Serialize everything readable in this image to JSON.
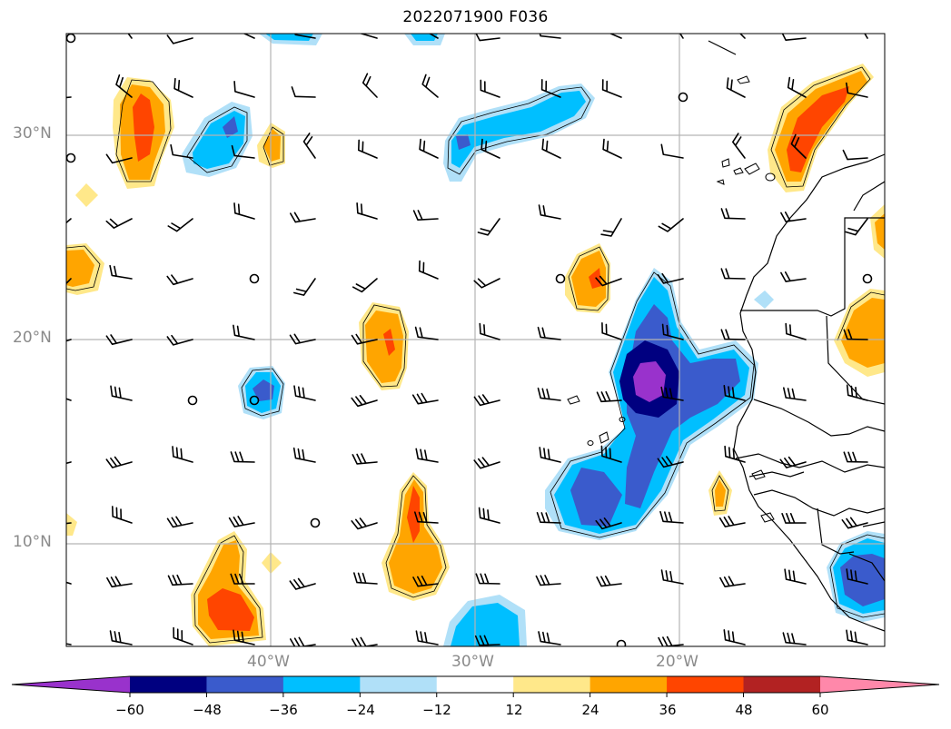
{
  "title": "2022071900 F036",
  "lat_labels": [
    "30°N",
    "20°N",
    "10°N"
  ],
  "lon_labels": [
    "40°W",
    "30°W",
    "20°W"
  ],
  "colorbar": {
    "ticks": [
      "−60",
      "−48",
      "−36",
      "−24",
      "−12",
      "12",
      "24",
      "36",
      "48",
      "60"
    ],
    "colors": [
      "#9932cc",
      "#000080",
      "#3a5bcc",
      "#00bfff",
      "#b0e0f8",
      "#ffffff",
      "#ffe88a",
      "#ffa500",
      "#ff4500",
      "#b22222",
      "#ff88aa"
    ]
  },
  "palette": {
    "neg_pale": "#b0e0f8",
    "neg_light": "#00bfff",
    "neg_mid": "#3a5bcc",
    "neg_dark": "#000080",
    "neg_purple": "#9932cc",
    "pos_pale": "#ffe88a",
    "pos_mid": "#ffa500",
    "pos_strong": "#ff4500",
    "pos_dark": "#b22222"
  }
}
